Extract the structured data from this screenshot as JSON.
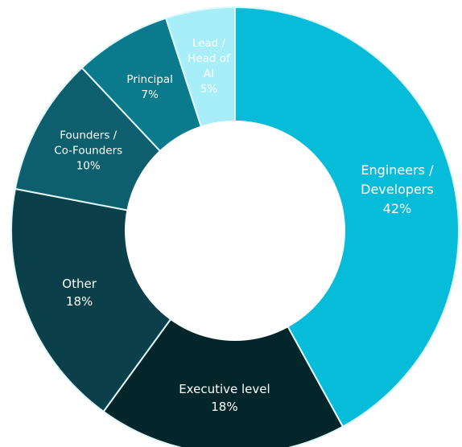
{
  "chart_data": {
    "type": "pie",
    "style": "donut",
    "start_angle_deg": 0,
    "direction": "clockwise",
    "slices": [
      {
        "label_lines": [
          "Engineers /",
          "Developers"
        ],
        "value_label": "42%",
        "value": 42,
        "color": "#06BCD9",
        "text_color": "#ffffff"
      },
      {
        "label_lines": [
          "Executive level"
        ],
        "value_label": "18%",
        "value": 18,
        "color": "#03262B",
        "text_color": "#ffffff"
      },
      {
        "label_lines": [
          "Other"
        ],
        "value_label": "18%",
        "value": 18,
        "color": "#0B3F49",
        "text_color": "#ffffff"
      },
      {
        "label_lines": [
          "Founders /",
          "Co-Founders"
        ],
        "value_label": "10%",
        "value": 10,
        "color": "#0D5F6D",
        "text_color": "#ffffff"
      },
      {
        "label_lines": [
          "Principal"
        ],
        "value_label": "7%",
        "value": 7,
        "color": "#0B7A8C",
        "text_color": "#ffffff"
      },
      {
        "label_lines": [
          "Lead /",
          "Head of",
          "AI"
        ],
        "value_label": "5%",
        "value": 5,
        "color": "#A8EEF9",
        "text_color": "#1a3b40"
      }
    ],
    "separator_color": "#dff8fc",
    "legend": "none",
    "title": ""
  }
}
